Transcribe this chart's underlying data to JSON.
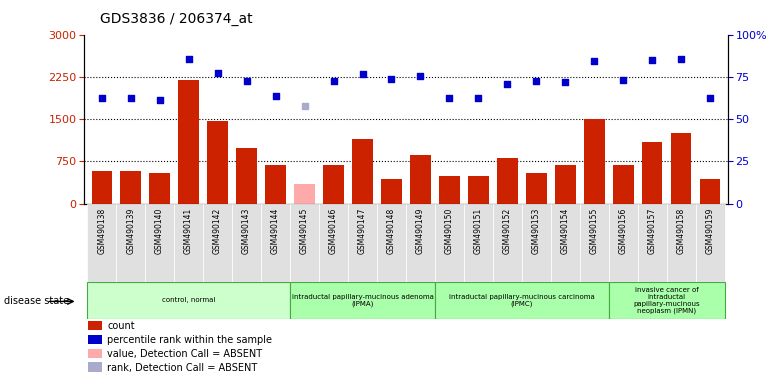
{
  "title": "GDS3836 / 206374_at",
  "samples": [
    "GSM490138",
    "GSM490139",
    "GSM490140",
    "GSM490141",
    "GSM490142",
    "GSM490143",
    "GSM490144",
    "GSM490145",
    "GSM490146",
    "GSM490147",
    "GSM490148",
    "GSM490149",
    "GSM490150",
    "GSM490151",
    "GSM490152",
    "GSM490153",
    "GSM490154",
    "GSM490155",
    "GSM490156",
    "GSM490157",
    "GSM490158",
    "GSM490159"
  ],
  "counts": [
    580,
    580,
    540,
    2200,
    1460,
    980,
    680,
    340,
    680,
    1150,
    440,
    870,
    490,
    490,
    800,
    540,
    680,
    1500,
    680,
    1100,
    1250,
    440
  ],
  "counts_absent": [
    false,
    false,
    false,
    false,
    false,
    false,
    false,
    true,
    false,
    false,
    false,
    false,
    false,
    false,
    false,
    false,
    false,
    false,
    false,
    false,
    false,
    false
  ],
  "percentile_ranks": [
    62.7,
    62.3,
    61.3,
    85.3,
    77.0,
    72.7,
    63.7,
    57.7,
    72.7,
    76.7,
    73.7,
    75.3,
    62.3,
    62.3,
    70.7,
    72.7,
    72.0,
    84.3,
    73.0,
    84.7,
    85.3,
    62.3
  ],
  "rank_absent": [
    false,
    false,
    false,
    false,
    false,
    false,
    false,
    true,
    false,
    false,
    false,
    false,
    false,
    false,
    false,
    false,
    false,
    false,
    false,
    false,
    false,
    false
  ],
  "ylim_left": [
    0,
    3000
  ],
  "ylim_right": [
    0,
    100
  ],
  "yticks_left": [
    0,
    750,
    1500,
    2250,
    3000
  ],
  "yticks_right": [
    0,
    25,
    50,
    75,
    100
  ],
  "bar_color": "#cc2200",
  "bar_absent_color": "#ffaaaa",
  "dot_color": "#0000cc",
  "dot_absent_color": "#aaaacc",
  "groups": [
    {
      "label": "control, normal",
      "start": 0,
      "end": 7,
      "color": "#ccffcc"
    },
    {
      "label": "intraductal papillary-mucinous adenoma\n(IPMA)",
      "start": 7,
      "end": 12,
      "color": "#aaffaa"
    },
    {
      "label": "intraductal papillary-mucinous carcinoma\n(IPMC)",
      "start": 12,
      "end": 18,
      "color": "#aaffaa"
    },
    {
      "label": "invasive cancer of\nintraductal\npapillary-mucinous\nneoplasm (IPMN)",
      "start": 18,
      "end": 22,
      "color": "#aaffaa"
    }
  ],
  "legend_items": [
    {
      "label": "count",
      "color": "#cc2200"
    },
    {
      "label": "percentile rank within the sample",
      "color": "#0000cc"
    },
    {
      "label": "value, Detection Call = ABSENT",
      "color": "#ffaaaa"
    },
    {
      "label": "rank, Detection Call = ABSENT",
      "color": "#aaaacc"
    }
  ]
}
